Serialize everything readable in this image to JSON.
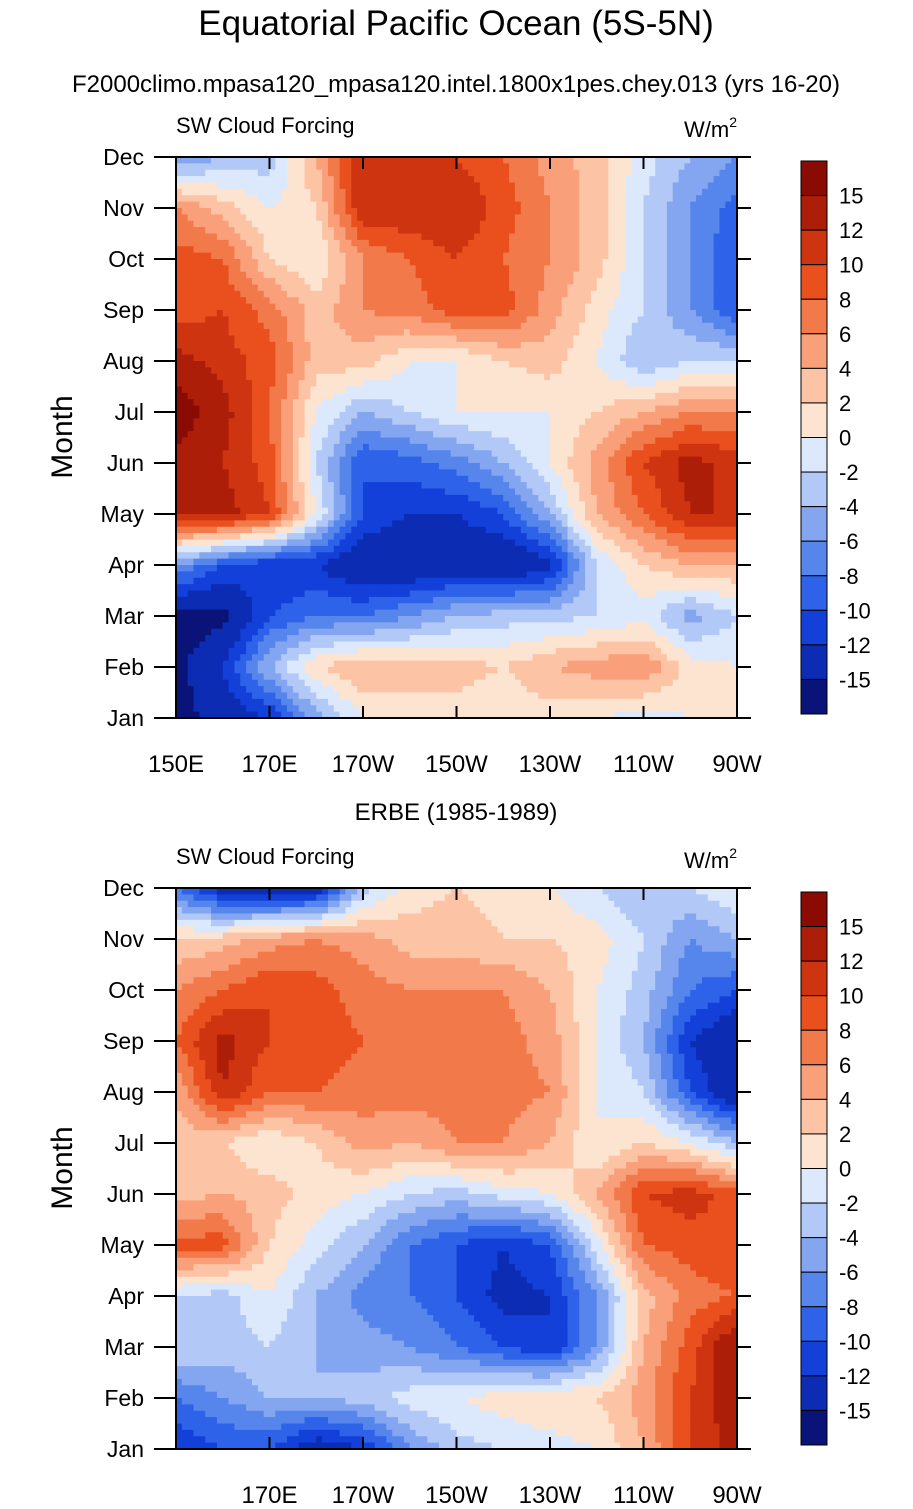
{
  "figure": {
    "title": "Equatorial Pacific Ocean (5S-5N)",
    "subtitle": "F2000climo.mpasa120_mpasa120.intel.1800x1pes.chey.013 (yrs 16-20)"
  },
  "colors": {
    "levels": [
      -15,
      -12,
      -10,
      -8,
      -6,
      -4,
      -2,
      0,
      2,
      4,
      6,
      8,
      10,
      12,
      15
    ],
    "fills": [
      "#0a1478",
      "#0c2cb4",
      "#1240d8",
      "#2e62e8",
      "#5686ec",
      "#84a6f0",
      "#b2c8f6",
      "#dce8fc",
      "#fde4d0",
      "#fcc4a4",
      "#f9a07a",
      "#f27a4a",
      "#e9501e",
      "#cf3410",
      "#ad1e08",
      "#8a0a04"
    ]
  },
  "chart_data": [
    {
      "type": "heatmap",
      "title": "",
      "left_label": "SW Cloud Forcing",
      "right_label": "W/m",
      "right_label_sup": "2",
      "ylabel": "Month",
      "xlabel": "",
      "xtick_labels": [
        "150E",
        "170E",
        "170W",
        "150W",
        "130W",
        "110W",
        "90W"
      ],
      "xtick_lons": [
        150,
        170,
        190,
        210,
        230,
        250,
        270
      ],
      "xlim": [
        150,
        270
      ],
      "ytick_labels": [
        "Jan",
        "Feb",
        "Mar",
        "Apr",
        "May",
        "Jun",
        "Jul",
        "Aug",
        "Sep",
        "Oct",
        "Nov",
        "Dec"
      ],
      "lons": [
        150,
        160,
        170,
        180,
        190,
        200,
        210,
        220,
        230,
        240,
        250,
        260,
        270
      ],
      "months": [
        "Jan",
        "Feb",
        "Mar",
        "Apr",
        "May",
        "Jun",
        "Jul",
        "Aug",
        "Sep",
        "Oct",
        "Nov",
        "Dec"
      ],
      "values": [
        [
          -16,
          -14,
          -12,
          -5,
          0,
          1,
          1,
          0,
          1,
          0,
          -1,
          0,
          0
        ],
        [
          -16,
          -12,
          -4,
          2,
          4,
          3,
          3,
          2,
          4,
          5,
          6,
          1,
          0
        ],
        [
          -16,
          -16,
          -10,
          -8,
          -8,
          -6,
          -4,
          -3,
          -3,
          -2,
          -1,
          -5,
          -2
        ],
        [
          -6,
          -10,
          -12,
          -12,
          -15,
          -15,
          -14,
          -15,
          -13,
          -2,
          2,
          4,
          4
        ],
        [
          13,
          13,
          10,
          0,
          -10,
          -12,
          -12,
          -10,
          -4,
          4,
          8,
          12,
          12
        ],
        [
          14,
          12,
          9,
          -2,
          -10,
          -9,
          -7,
          -4,
          0,
          5,
          10,
          13,
          11
        ],
        [
          17,
          13,
          8,
          0,
          -4,
          -2,
          0,
          0,
          0,
          2,
          4,
          6,
          6
        ],
        [
          13,
          11,
          9,
          3,
          3,
          0,
          0,
          2,
          3,
          0,
          -4,
          -2,
          -2
        ],
        [
          9,
          10,
          7,
          3,
          6,
          7,
          9,
          9,
          5,
          1,
          -2,
          -6,
          -10
        ],
        [
          9,
          8,
          2,
          0,
          6,
          8,
          10,
          8,
          6,
          3,
          -2,
          -6,
          -10
        ],
        [
          6,
          3,
          0,
          2,
          12,
          12,
          12,
          9,
          6,
          3,
          -2,
          -6,
          -9
        ],
        [
          -6,
          -4,
          -3,
          4,
          12,
          11,
          10,
          8,
          5,
          3,
          -1,
          -4,
          -6
        ]
      ],
      "colorbar_labels": [
        "15",
        "12",
        "10",
        "8",
        "6",
        "4",
        "2",
        "0",
        "-2",
        "-4",
        "-6",
        "-8",
        "-10",
        "-12",
        "-15"
      ]
    },
    {
      "type": "heatmap",
      "title": "ERBE (1985-1989)",
      "left_label": "SW Cloud Forcing",
      "right_label": "W/m",
      "right_label_sup": "2",
      "ylabel": "Month",
      "xlabel": "",
      "xtick_labels": [
        "170E",
        "170W",
        "150W",
        "130W",
        "110W",
        "90W"
      ],
      "xtick_lons": [
        170,
        190,
        210,
        230,
        250,
        270
      ],
      "xlim": [
        150,
        270
      ],
      "ytick_labels": [
        "Jan",
        "Feb",
        "Mar",
        "Apr",
        "May",
        "Jun",
        "Jul",
        "Aug",
        "Sep",
        "Oct",
        "Nov",
        "Dec"
      ],
      "lons": [
        150,
        160,
        170,
        180,
        190,
        200,
        210,
        220,
        230,
        240,
        250,
        260,
        270
      ],
      "months": [
        "Jan",
        "Feb",
        "Mar",
        "Apr",
        "May",
        "Jun",
        "Jul",
        "Aug",
        "Sep",
        "Oct",
        "Nov",
        "Dec"
      ],
      "values": [
        [
          -12,
          -10,
          -10,
          -14,
          -12,
          -6,
          -3,
          -2,
          -1,
          0,
          4,
          10,
          13
        ],
        [
          -8,
          -6,
          -4,
          -4,
          -3,
          -1,
          0,
          1,
          2,
          2,
          5,
          10,
          14
        ],
        [
          -2,
          -3,
          -2,
          -4,
          -5,
          -6,
          -8,
          -10,
          -12,
          -6,
          4,
          9,
          15
        ],
        [
          -2,
          -3,
          0,
          -4,
          -7,
          -8,
          -10,
          -13,
          -12,
          -6,
          3,
          7,
          8
        ],
        [
          9,
          9,
          2,
          -1,
          -4,
          -8,
          -10,
          -12,
          -10,
          -1,
          8,
          9,
          10
        ],
        [
          3,
          4,
          3,
          1,
          0,
          -2,
          -3,
          -1,
          0,
          4,
          10,
          11,
          9
        ],
        [
          3,
          2,
          0,
          2,
          5,
          4,
          6,
          6,
          4,
          0,
          2,
          0,
          -4
        ],
        [
          4,
          12,
          8,
          8,
          7,
          7,
          7,
          7,
          6,
          0,
          -2,
          -10,
          -15
        ],
        [
          8,
          13,
          10,
          9,
          8,
          8,
          8,
          7,
          5,
          0,
          -4,
          -12,
          -15
        ],
        [
          6,
          8,
          10,
          9,
          7,
          6,
          6,
          6,
          4,
          0,
          -3,
          -8,
          -10
        ],
        [
          2,
          3,
          5,
          6,
          5,
          3,
          3,
          2,
          2,
          1,
          -2,
          -6,
          -4
        ],
        [
          -8,
          -14,
          -15,
          -14,
          -3,
          1,
          2,
          1,
          0,
          -2,
          -4,
          -2,
          0
        ]
      ],
      "colorbar_labels": [
        "15",
        "12",
        "10",
        "8",
        "6",
        "4",
        "2",
        "0",
        "-2",
        "-4",
        "-6",
        "-8",
        "-10",
        "-12",
        "-15"
      ]
    }
  ]
}
